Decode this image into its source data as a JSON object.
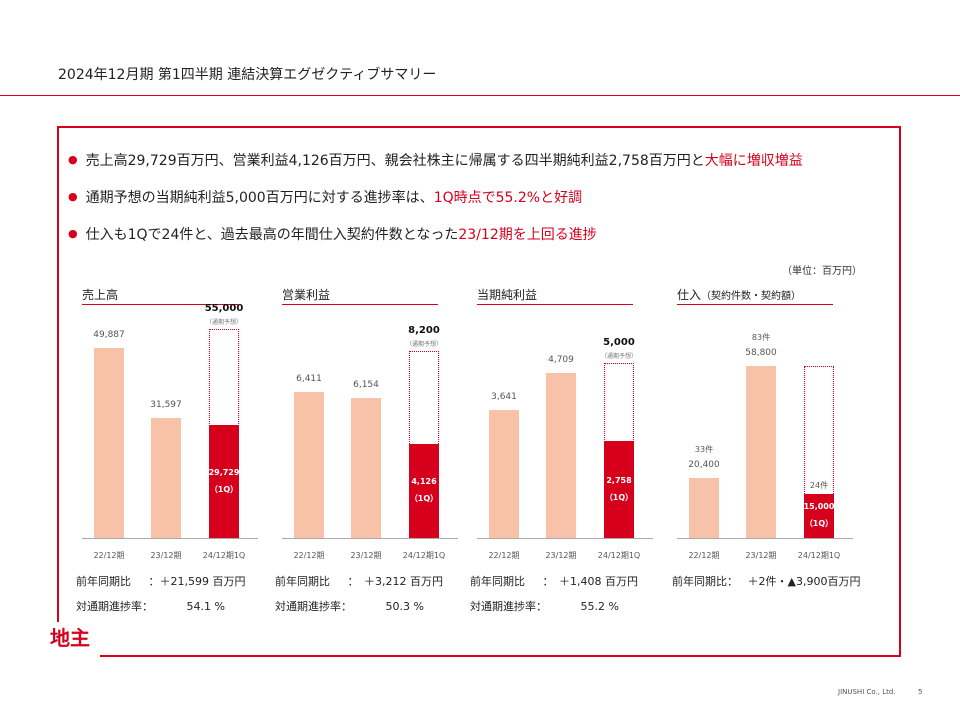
{
  "page_title": "2024年12月期 第1四半期 連結決算エグゼクティブサマリー",
  "bullets": [
    {
      "plain": "売上高29,729百万円、営業利益4,126百万円、親会社株主に帰属する四半期純利益2,758百万円と",
      "emph": "大幅に増収増益"
    },
    {
      "plain": "通期予想の当期純利益5,000百万円に対する進捗率は、",
      "emph": "1Q時点で55.2%と好調"
    },
    {
      "plain": "仕入も1Qで24件と、過去最高の年間仕入契約件数となった",
      "emph": "23/12期を上回る進捗"
    }
  ],
  "unit_note": "（単位：百万円）",
  "logo_text": "地主",
  "footer": {
    "company": "JINUSHI Co., Ltd.",
    "page": "5"
  },
  "chart_data": [
    {
      "type": "bar",
      "title": "売上高",
      "categories": [
        "22/12期",
        "23/12期",
        "24/12期1Q"
      ],
      "values": [
        49887,
        31597,
        29729
      ],
      "value_labels": [
        "49,887",
        "31,597",
        "29,729"
      ],
      "current_suffix": "（1Q）",
      "target": 55000,
      "target_label": "55,000",
      "target_note": "（通期予想）",
      "ylim": [
        0,
        60000
      ],
      "yoy_label": "前年同期比",
      "yoy_value": "：＋21,599 百万円",
      "progress_label": "対通期進捗率：",
      "progress_value": "54.1 %"
    },
    {
      "type": "bar",
      "title": "営業利益",
      "categories": [
        "22/12期",
        "23/12期",
        "24/12期1Q"
      ],
      "values": [
        6411,
        6154,
        4126
      ],
      "value_labels": [
        "6,411",
        "6,154",
        "4,126"
      ],
      "current_suffix": "（1Q）",
      "target": 8200,
      "target_label": "8,200",
      "target_note": "（通期予想）",
      "ylim": [
        0,
        10000
      ],
      "yoy_label": "前年同期比",
      "yoy_value": "：　＋3,212 百万円",
      "progress_label": "対通期進捗率：",
      "progress_value": "50.3 %"
    },
    {
      "type": "bar",
      "title": "当期純利益",
      "categories": [
        "22/12期",
        "23/12期",
        "24/12期1Q"
      ],
      "values": [
        3641,
        4709,
        2758
      ],
      "value_labels": [
        "3,641",
        "4,709",
        "2,758"
      ],
      "current_suffix": "（1Q）",
      "target": 5000,
      "target_label": "5,000",
      "target_note": "（通期予想）",
      "ylim": [
        0,
        6500
      ],
      "yoy_label": "前年同期比",
      "yoy_value": "：　＋1,408 百万円",
      "progress_label": "対通期進捗率：",
      "progress_value": "55.2 %"
    },
    {
      "type": "bar",
      "title": "仕入",
      "subtitle": "（契約件数・契約額）",
      "categories": [
        "22/12期",
        "23/12期",
        "24/12期1Q"
      ],
      "values": [
        20400,
        58800,
        15000
      ],
      "value_labels": [
        "20,400",
        "58,800",
        "15,000"
      ],
      "counts": [
        "33件",
        "83件",
        "24件"
      ],
      "current_suffix": "（1Q）",
      "target": 58800,
      "ylim": [
        0,
        78000
      ],
      "yoy_label": "前年同期比：",
      "yoy_value": "＋2件・▲3,900百万円"
    }
  ]
}
